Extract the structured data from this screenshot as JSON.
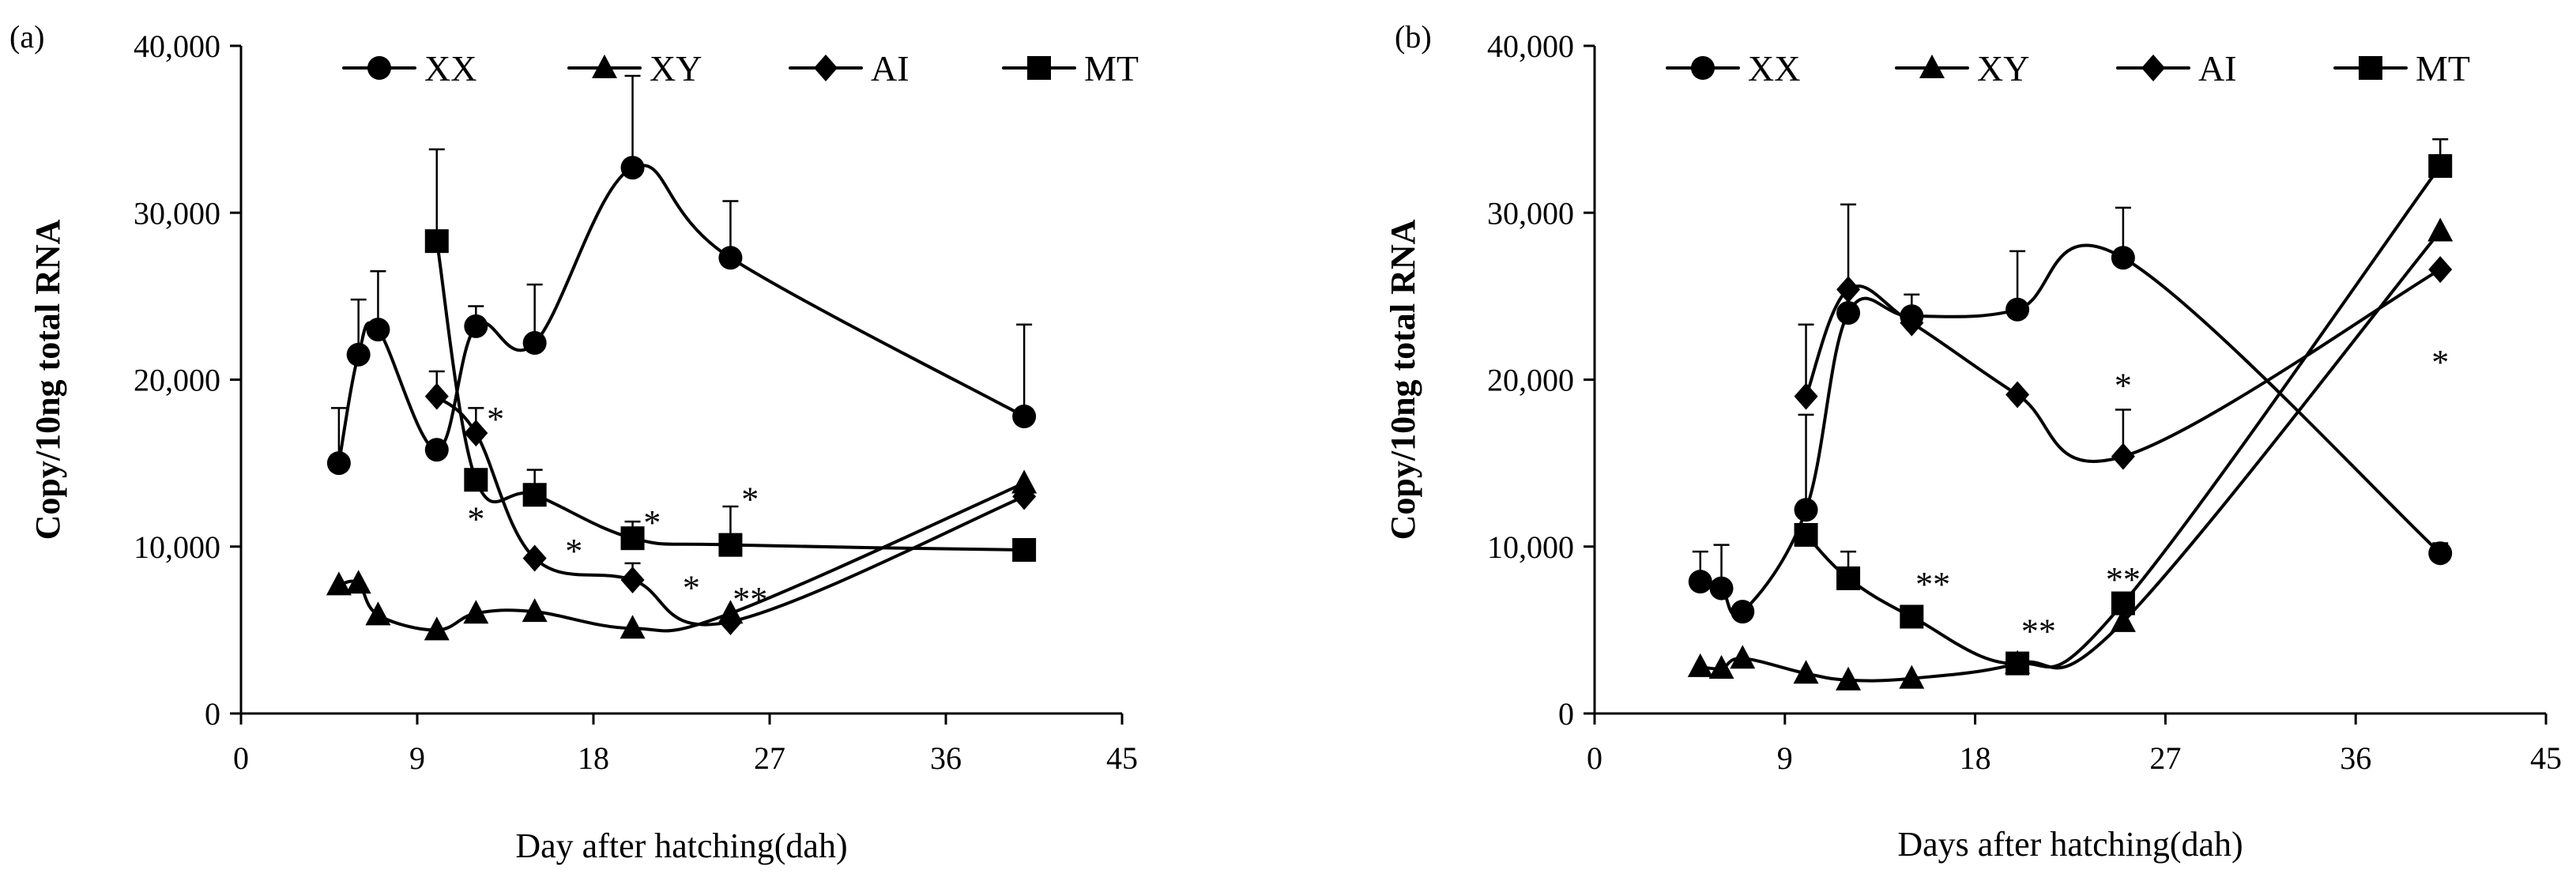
{
  "chart_data": [
    {
      "type": "line",
      "panel_label": "(a)",
      "xlabel": "Day after hatching(dah)",
      "ylabel": "Copy/10ng total RNA",
      "xlim": [
        0,
        45
      ],
      "ylim": [
        0,
        40000
      ],
      "x_ticks": [
        0,
        9,
        18,
        27,
        36,
        45
      ],
      "y_ticks": [
        0,
        10000,
        20000,
        30000,
        40000
      ],
      "x_tick_labels": [
        "0",
        "9",
        "18",
        "27",
        "36",
        "45"
      ],
      "y_tick_labels": [
        "0",
        "10,000",
        "20,000",
        "30,000",
        "40,000"
      ],
      "legend": [
        "XX",
        "XY",
        "AI",
        "MT"
      ],
      "series": [
        {
          "name": "XX",
          "marker": "circle",
          "x": [
            5,
            6,
            7,
            10,
            12,
            15,
            20,
            25,
            40
          ],
          "y": [
            15000,
            21500,
            23000,
            15800,
            23200,
            22200,
            32700,
            27300,
            17800
          ],
          "err": [
            3300,
            3300,
            3500,
            0,
            1200,
            3500,
            5500,
            3400,
            5500
          ]
        },
        {
          "name": "XY",
          "marker": "triangle",
          "x": [
            5,
            6,
            7,
            10,
            12,
            15,
            20,
            25,
            40
          ],
          "y": [
            7700,
            7800,
            5900,
            5000,
            6000,
            6100,
            5100,
            6000,
            13800
          ],
          "err": [
            0,
            0,
            0,
            0,
            0,
            0,
            0,
            0,
            0
          ]
        },
        {
          "name": "AI",
          "marker": "diamond",
          "x": [
            10,
            12,
            15,
            20,
            25,
            40
          ],
          "y": [
            19000,
            16800,
            9300,
            8000,
            5500,
            13000
          ],
          "err": [
            1500,
            1500,
            0,
            1000,
            0,
            0
          ]
        },
        {
          "name": "MT",
          "marker": "square",
          "x": [
            10,
            12,
            15,
            20,
            25,
            40
          ],
          "y": [
            28300,
            14000,
            13100,
            10500,
            10100,
            9800
          ],
          "err": [
            5500,
            0,
            1500,
            1000,
            2300,
            0
          ]
        }
      ],
      "annotations": [
        {
          "text": "*",
          "x": 13,
          "y": 17800
        },
        {
          "text": "*",
          "x": 12,
          "y": 11800
        },
        {
          "text": "*",
          "x": 17,
          "y": 9900
        },
        {
          "text": "*",
          "x": 21,
          "y": 11600
        },
        {
          "text": "*",
          "x": 23,
          "y": 7700
        },
        {
          "text": "*",
          "x": 26,
          "y": 13000
        },
        {
          "text": "**",
          "x": 26,
          "y": 7000
        }
      ]
    },
    {
      "type": "line",
      "panel_label": "(b)",
      "xlabel": "Days after hatching(dah)",
      "ylabel": "Copy/10ng total RNA",
      "xlim": [
        0,
        45
      ],
      "ylim": [
        0,
        40000
      ],
      "x_ticks": [
        0,
        9,
        18,
        27,
        36,
        45
      ],
      "y_ticks": [
        0,
        10000,
        20000,
        30000,
        40000
      ],
      "x_tick_labels": [
        "0",
        "9",
        "18",
        "27",
        "36",
        "45"
      ],
      "y_tick_labels": [
        "0",
        "10,000",
        "20,000",
        "30,000",
        "40,000"
      ],
      "legend": [
        "XX",
        "XY",
        "AI",
        "MT"
      ],
      "series": [
        {
          "name": "XX",
          "marker": "circle",
          "x": [
            5,
            6,
            7,
            10,
            12,
            15,
            20,
            25,
            40
          ],
          "y": [
            7900,
            7500,
            6100,
            12200,
            24000,
            23800,
            24200,
            27300,
            9600
          ],
          "err": [
            1800,
            2600,
            0,
            5700,
            6500,
            1300,
            3500,
            3000,
            600
          ]
        },
        {
          "name": "XY",
          "marker": "triangle",
          "x": [
            5,
            6,
            7,
            10,
            12,
            15,
            20,
            25,
            40
          ],
          "y": [
            2800,
            2700,
            3300,
            2400,
            2000,
            2100,
            3000,
            5500,
            28900
          ],
          "err": [
            0,
            0,
            0,
            0,
            0,
            0,
            0,
            0,
            0
          ]
        },
        {
          "name": "AI",
          "marker": "diamond",
          "x": [
            10,
            12,
            15,
            20,
            25,
            40
          ],
          "y": [
            19000,
            25400,
            23400,
            19100,
            15400,
            26600
          ],
          "err": [
            4300,
            0,
            0,
            0,
            2800,
            0
          ]
        },
        {
          "name": "MT",
          "marker": "square",
          "x": [
            10,
            12,
            15,
            20,
            25,
            40
          ],
          "y": [
            10700,
            8100,
            5800,
            3000,
            6600,
            32800
          ],
          "err": [
            0,
            1600,
            0,
            0,
            0,
            1600
          ]
        }
      ],
      "annotations": [
        {
          "text": "**",
          "x": 16,
          "y": 7900
        },
        {
          "text": "**",
          "x": 21,
          "y": 5100
        },
        {
          "text": "**",
          "x": 25,
          "y": 8200
        },
        {
          "text": "*",
          "x": 25,
          "y": 19800
        },
        {
          "text": "*",
          "x": 40,
          "y": 21200
        }
      ]
    }
  ]
}
